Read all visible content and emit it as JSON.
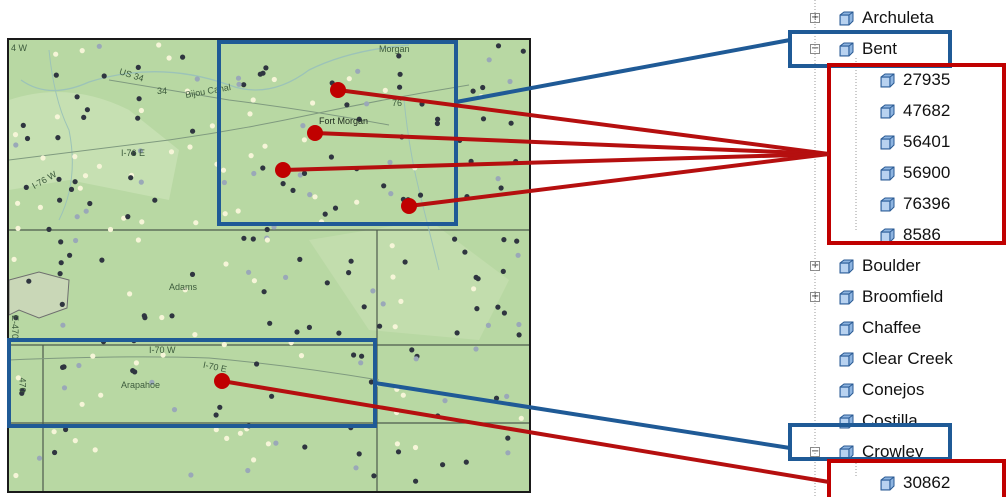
{
  "map": {
    "labels": {
      "i76_top": "4 W",
      "morgan": "Morgan",
      "us34": "US 34",
      "n34": "34",
      "bijou": "Bijou Canal",
      "fort_morgan": "Fort Morgan",
      "n76": "76",
      "i76e": "I-76 E",
      "i76w": "I-76 W",
      "adams": "Adams",
      "i70w": "I-70 W",
      "i70e": "I-70 E",
      "arapahoe": "Arapahoe",
      "e470": "E-470",
      "n470": "470"
    },
    "colors": {
      "land": "#b8d8a3",
      "dark_dot": "#2f3540",
      "light_dot": "#f6f5d8",
      "grey_dot": "#9aa8b8",
      "blue_box": "#1f5a96",
      "red_box": "#c00000",
      "red_line": "#b50f0f"
    }
  },
  "tree": {
    "items": [
      {
        "label": "Archuleta",
        "expander": "+",
        "icon": "cube-icon"
      },
      {
        "label": "Bent",
        "expander": "−",
        "icon": "cube-icon"
      },
      {
        "label": "27935",
        "icon": "cube-icon"
      },
      {
        "label": "47682",
        "icon": "cube-icon"
      },
      {
        "label": "56401",
        "icon": "cube-icon"
      },
      {
        "label": "56900",
        "icon": "cube-icon"
      },
      {
        "label": "76396",
        "icon": "cube-icon"
      },
      {
        "label": "8586",
        "icon": "cube-icon"
      },
      {
        "label": "Boulder",
        "expander": "+",
        "icon": "cube-icon"
      },
      {
        "label": "Broomfield",
        "expander": "+",
        "icon": "cube-icon"
      },
      {
        "label": "Chaffee",
        "icon": "cube-icon"
      },
      {
        "label": "Clear Creek",
        "icon": "cube-icon"
      },
      {
        "label": "Conejos",
        "icon": "cube-icon"
      },
      {
        "label": "Costilla",
        "icon": "cube-icon"
      },
      {
        "label": "Crowley",
        "expander": "−",
        "icon": "cube-icon"
      },
      {
        "label": "30862",
        "icon": "cube-icon"
      }
    ]
  }
}
